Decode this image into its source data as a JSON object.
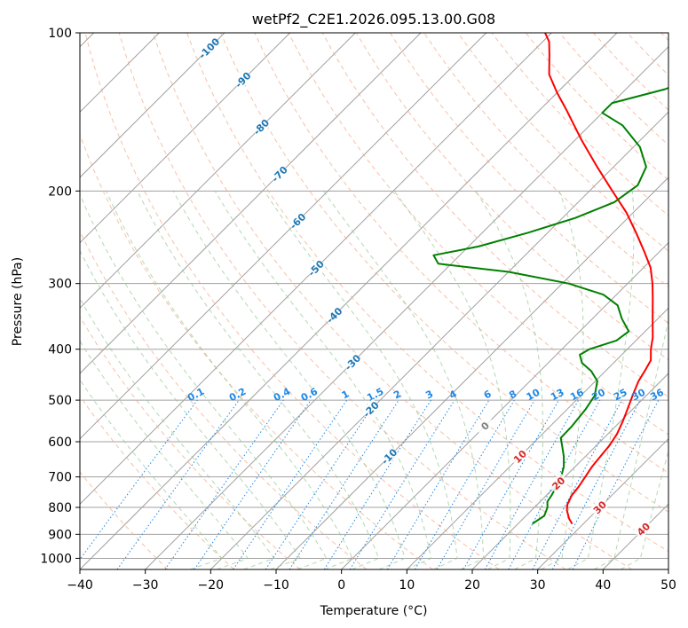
{
  "chart_data": {
    "type": "skew-t",
    "title": "wetPf2_C2E1.2026.095.13.00.G08",
    "xlabel": "Temperature (°C)",
    "ylabel": "Pressure (hPa)",
    "xlim": [
      -40,
      50
    ],
    "ylim": [
      1050,
      100
    ],
    "x_ticks": [
      -40,
      -30,
      -20,
      -10,
      0,
      10,
      20,
      30,
      40,
      50
    ],
    "y_ticks": [
      1000,
      900,
      800,
      700,
      600,
      500,
      400,
      300,
      200,
      100
    ],
    "grid": true,
    "colors": {
      "temperature": "#ff0000",
      "dewpoint": "#008000",
      "isotherm": "#a0a0a0",
      "dry_adiabat": "#f4a582",
      "moist_adiabat": "#92c892",
      "mixing_ratio": "#1e88e5",
      "isotherm_label": "#1f77b4",
      "dry_adiabat_label": "#d62728",
      "zero_label": "#808080"
    },
    "isotherm_labels": [
      {
        "value": -100,
        "text": "-100"
      },
      {
        "value": -90,
        "text": "-90"
      },
      {
        "value": -80,
        "text": "-80"
      },
      {
        "value": -70,
        "text": "-70"
      },
      {
        "value": -60,
        "text": "-60"
      },
      {
        "value": -50,
        "text": "-50"
      },
      {
        "value": -40,
        "text": "-40"
      },
      {
        "value": -30,
        "text": "-30"
      },
      {
        "value": -20,
        "text": "-20"
      },
      {
        "value": -10,
        "text": "-10"
      },
      {
        "value": 0,
        "text": "0"
      },
      {
        "value": 10,
        "text": "10"
      },
      {
        "value": 20,
        "text": "20"
      },
      {
        "value": 30,
        "text": "30"
      },
      {
        "value": 40,
        "text": "40"
      }
    ],
    "mixing_ratio_labels": [
      "0.1",
      "0.2",
      "0.4",
      "0.6",
      "1",
      "1.5",
      "2",
      "3",
      "4",
      "6",
      "8",
      "10",
      "13",
      "16",
      "20",
      "25",
      "30",
      "36"
    ],
    "series": [
      {
        "name": "Temperature",
        "points": [
          {
            "p": 860,
            "t": 28.3
          },
          {
            "p": 840,
            "t": 27.0
          },
          {
            "p": 810,
            "t": 25.4
          },
          {
            "p": 790,
            "t": 24.6
          },
          {
            "p": 760,
            "t": 23.9
          },
          {
            "p": 730,
            "t": 23.6
          },
          {
            "p": 700,
            "t": 23.1
          },
          {
            "p": 670,
            "t": 22.6
          },
          {
            "p": 640,
            "t": 22.3
          },
          {
            "p": 610,
            "t": 22.0
          },
          {
            "p": 580,
            "t": 21.4
          },
          {
            "p": 550,
            "t": 20.4
          },
          {
            "p": 520,
            "t": 19.2
          },
          {
            "p": 490,
            "t": 17.9
          },
          {
            "p": 460,
            "t": 16.6
          },
          {
            "p": 440,
            "t": 16.0
          },
          {
            "p": 420,
            "t": 15.3
          },
          {
            "p": 400,
            "t": 13.6
          },
          {
            "p": 380,
            "t": 12.1
          },
          {
            "p": 360,
            "t": 10.2
          },
          {
            "p": 340,
            "t": 8.2
          },
          {
            "p": 320,
            "t": 6.1
          },
          {
            "p": 300,
            "t": 3.8
          },
          {
            "p": 280,
            "t": 1.1
          },
          {
            "p": 260,
            "t": -2.5
          },
          {
            "p": 240,
            "t": -6.5
          },
          {
            "p": 220,
            "t": -11.0
          },
          {
            "p": 200,
            "t": -16.5
          },
          {
            "p": 180,
            "t": -22.5
          },
          {
            "p": 160,
            "t": -29.0
          },
          {
            "p": 140,
            "t": -36.0
          },
          {
            "p": 130,
            "t": -40.0
          },
          {
            "p": 120,
            "t": -44.0
          },
          {
            "p": 110,
            "t": -47.0
          },
          {
            "p": 104,
            "t": -49.0
          },
          {
            "p": 100,
            "t": -51.0
          }
        ]
      },
      {
        "name": "Dewpoint",
        "points": [
          {
            "p": 860,
            "t": 22.2
          },
          {
            "p": 830,
            "t": 22.8
          },
          {
            "p": 800,
            "t": 22.0
          },
          {
            "p": 780,
            "t": 21.1
          },
          {
            "p": 760,
            "t": 20.8
          },
          {
            "p": 730,
            "t": 20.2
          },
          {
            "p": 700,
            "t": 19.4
          },
          {
            "p": 670,
            "t": 18.3
          },
          {
            "p": 640,
            "t": 16.7
          },
          {
            "p": 615,
            "t": 15.1
          },
          {
            "p": 590,
            "t": 13.4
          },
          {
            "p": 560,
            "t": 13.3
          },
          {
            "p": 520,
            "t": 12.8
          },
          {
            "p": 490,
            "t": 12.1
          },
          {
            "p": 460,
            "t": 10.3
          },
          {
            "p": 440,
            "t": 7.8
          },
          {
            "p": 425,
            "t": 5.2
          },
          {
            "p": 410,
            "t": 3.6
          },
          {
            "p": 400,
            "t": 4.2
          },
          {
            "p": 385,
            "t": 7.0
          },
          {
            "p": 370,
            "t": 7.5
          },
          {
            "p": 350,
            "t": 4.5
          },
          {
            "p": 330,
            "t": 1.8
          },
          {
            "p": 315,
            "t": -2.0
          },
          {
            "p": 300,
            "t": -9.0
          },
          {
            "p": 285,
            "t": -20.0
          },
          {
            "p": 275,
            "t": -32.0
          },
          {
            "p": 265,
            "t": -34.0
          },
          {
            "p": 255,
            "t": -28.5
          },
          {
            "p": 240,
            "t": -23.0
          },
          {
            "p": 225,
            "t": -18.0
          },
          {
            "p": 210,
            "t": -14.5
          },
          {
            "p": 195,
            "t": -13.5
          },
          {
            "p": 180,
            "t": -15.0
          },
          {
            "p": 165,
            "t": -19.0
          },
          {
            "p": 150,
            "t": -25.0
          },
          {
            "p": 142,
            "t": -30.0
          },
          {
            "p": 136,
            "t": -30.0
          },
          {
            "p": 128,
            "t": -24.0
          },
          {
            "p": 118,
            "t": -19.5
          },
          {
            "p": 108,
            "t": -20.0
          },
          {
            "p": 100,
            "t": -21.5
          }
        ]
      }
    ]
  }
}
